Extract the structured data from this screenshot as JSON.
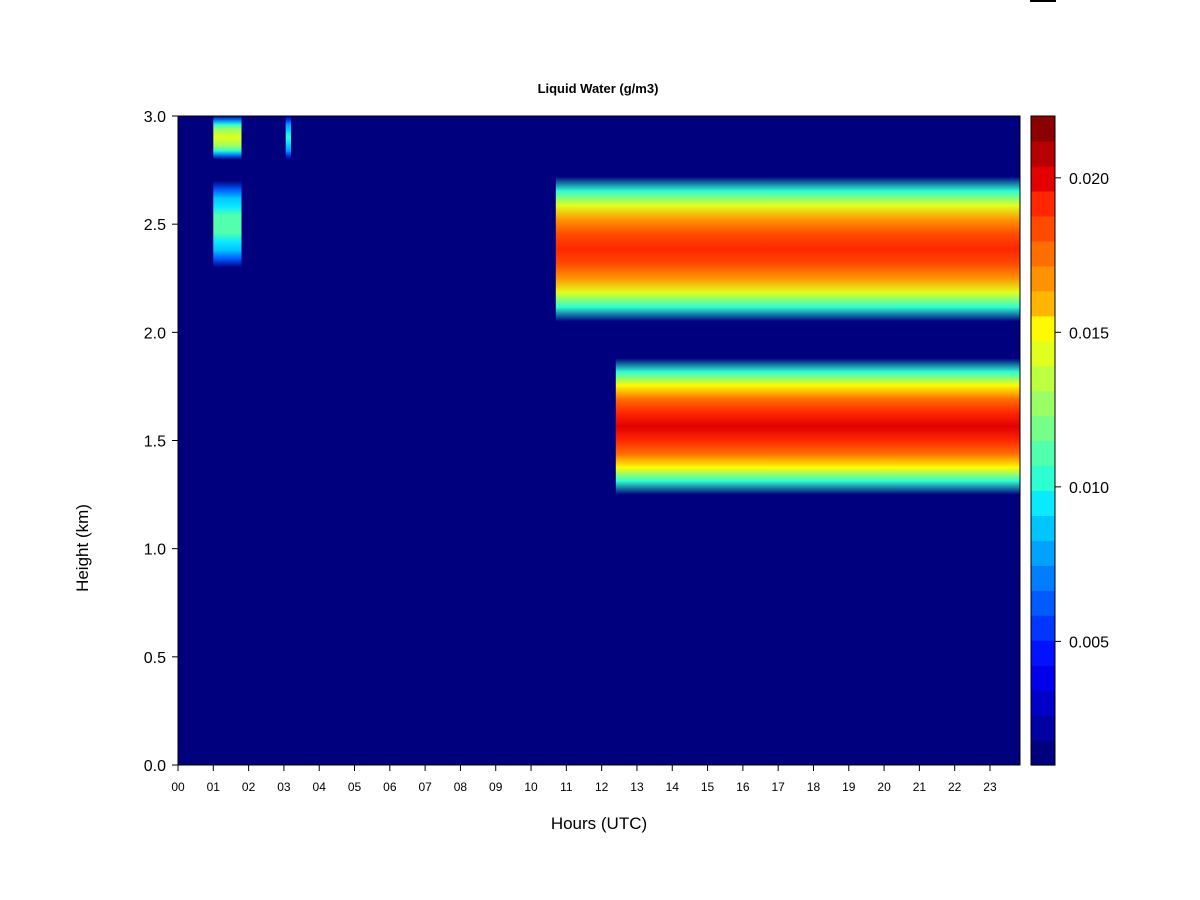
{
  "chart_data": {
    "type": "heatmap",
    "title": "Liquid Water (g/m3)",
    "xlabel": "Hours (UTC)",
    "ylabel": "Height (km)",
    "xlim": [
      0,
      23.85
    ],
    "ylim": [
      0,
      3.0
    ],
    "x_ticks": [
      "00",
      "01",
      "02",
      "03",
      "04",
      "05",
      "06",
      "07",
      "08",
      "09",
      "10",
      "11",
      "12",
      "13",
      "14",
      "15",
      "16",
      "17",
      "18",
      "19",
      "20",
      "21",
      "22",
      "23"
    ],
    "y_ticks": [
      "0.0",
      "0.5",
      "1.0",
      "1.5",
      "2.0",
      "2.5",
      "3.0"
    ],
    "colorbar": {
      "range": [
        0.001,
        0.022
      ],
      "ticks": [
        "0.005",
        "0.010",
        "0.015",
        "0.020"
      ],
      "tick_values": [
        0.005,
        0.01,
        0.015,
        0.02
      ],
      "colors": [
        "#00007f",
        "#0000a3",
        "#0000c8",
        "#0000ed",
        "#0012ff",
        "#0036ff",
        "#005aff",
        "#007eff",
        "#00a2ff",
        "#00c6ff",
        "#0aeaff",
        "#2dffd1",
        "#51ffad",
        "#75ff89",
        "#99ff65",
        "#bdff41",
        "#e1ff1d",
        "#fffa00",
        "#ffb600",
        "#ff9200",
        "#ff6e00",
        "#ff4a00",
        "#ff2600",
        "#e20000",
        "#b70000",
        "#8b0000"
      ]
    },
    "cloud_features": [
      {
        "x_start": 1.0,
        "x_end": 1.8,
        "y_low": 2.8,
        "y_high": 3.0,
        "peak_lwc": 0.014
      },
      {
        "x_start": 1.0,
        "x_end": 1.8,
        "y_low": 2.3,
        "y_high": 2.7,
        "peak_lwc": 0.011
      },
      {
        "x_start": 3.05,
        "x_end": 3.2,
        "y_low": 2.8,
        "y_high": 3.0,
        "peak_lwc": 0.01
      },
      {
        "x_start": 10.7,
        "x_end": 23.85,
        "y_low": 2.05,
        "y_high": 2.72,
        "peak_lwc": 0.019
      },
      {
        "x_start": 12.4,
        "x_end": 23.85,
        "y_low": 1.25,
        "y_high": 1.88,
        "peak_lwc": 0.02
      }
    ]
  }
}
